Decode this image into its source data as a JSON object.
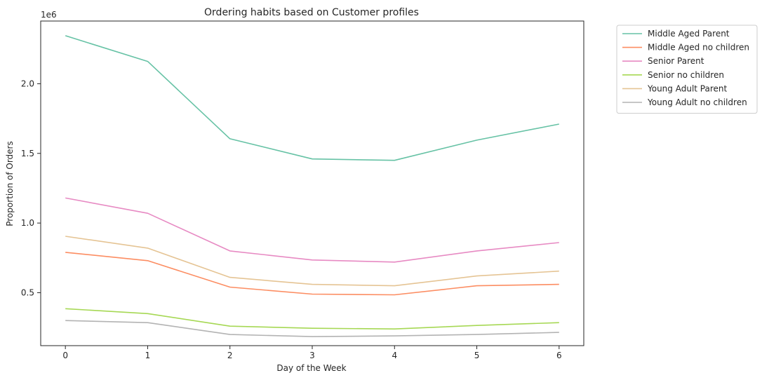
{
  "chart_data": {
    "type": "line",
    "title": "Ordering habits based on Customer profiles",
    "xlabel": "Day of the Week",
    "ylabel": "Proportion of Orders",
    "offset_label": "1e6",
    "x": [
      0,
      1,
      2,
      3,
      4,
      5,
      6
    ],
    "x_ticks": [
      "0",
      "1",
      "2",
      "3",
      "4",
      "5",
      "6"
    ],
    "y_ticks": [
      {
        "value": 0.5,
        "label": "0.5"
      },
      {
        "value": 1.0,
        "label": "1.0"
      },
      {
        "value": 1.5,
        "label": "1.5"
      },
      {
        "value": 2.0,
        "label": "2.0"
      }
    ],
    "xlim": [
      -0.3,
      6.3
    ],
    "ylim": [
      0.12,
      2.45
    ],
    "y_scale_factor": 1000000,
    "grid": false,
    "legend_position": "outside-top-right",
    "series": [
      {
        "name": "Middle Aged Parent",
        "color": "#66c2a5",
        "values": [
          2.345,
          2.16,
          1.605,
          1.46,
          1.45,
          1.595,
          1.71
        ]
      },
      {
        "name": "Middle Aged no children",
        "color": "#fc8d62",
        "values": [
          0.79,
          0.73,
          0.54,
          0.49,
          0.485,
          0.55,
          0.56
        ]
      },
      {
        "name": "Senior Parent",
        "color": "#e78ac3",
        "values": [
          1.18,
          1.07,
          0.8,
          0.735,
          0.72,
          0.8,
          0.86
        ]
      },
      {
        "name": "Senior no children",
        "color": "#a6d854",
        "values": [
          0.385,
          0.35,
          0.26,
          0.245,
          0.24,
          0.265,
          0.285
        ]
      },
      {
        "name": "Young Adult Parent",
        "color": "#e5c494",
        "values": [
          0.905,
          0.82,
          0.61,
          0.56,
          0.55,
          0.62,
          0.655
        ]
      },
      {
        "name": "Young Adult no children",
        "color": "#b3b3b3",
        "values": [
          0.3,
          0.285,
          0.2,
          0.185,
          0.19,
          0.2,
          0.215
        ]
      }
    ]
  }
}
